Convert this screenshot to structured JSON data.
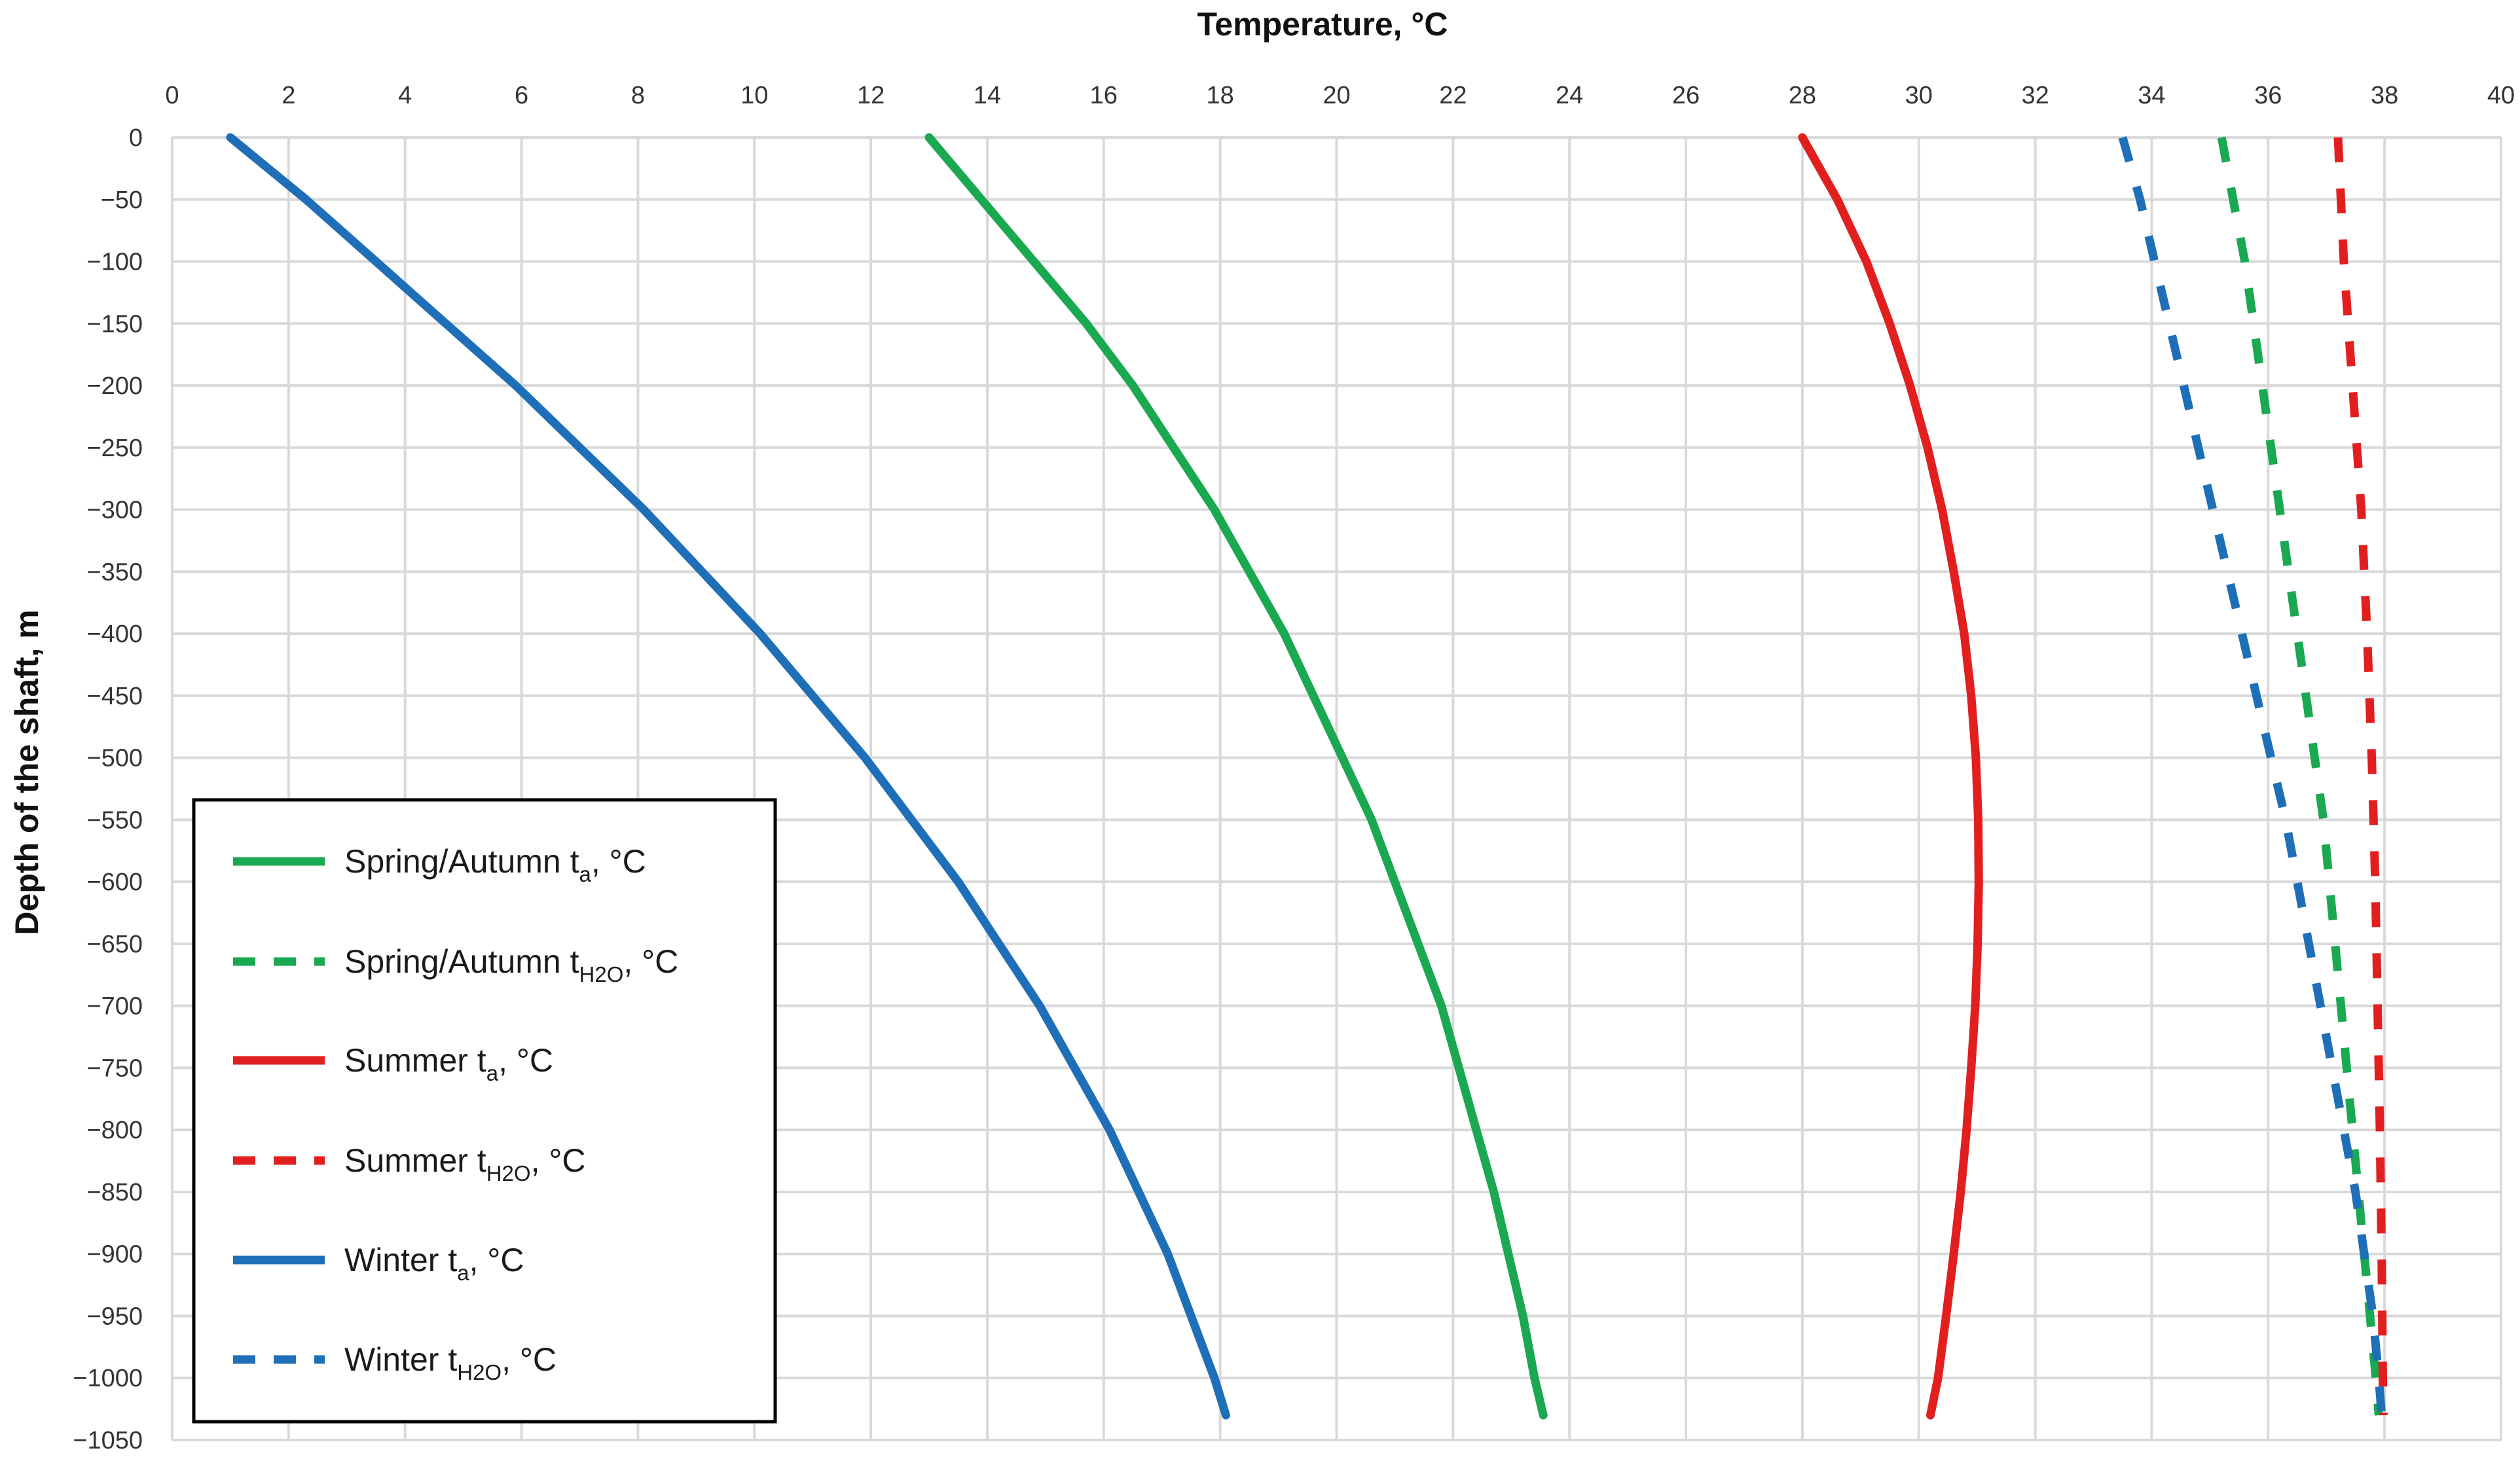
{
  "chart_data": {
    "type": "line",
    "title": "",
    "xlabel": "Temperature, °C",
    "ylabel": "Depth of the shaft, m",
    "xlim": [
      0,
      40
    ],
    "ylim": [
      -1050,
      0
    ],
    "x_ticks": [
      0,
      2,
      4,
      6,
      8,
      10,
      12,
      14,
      16,
      18,
      20,
      22,
      24,
      26,
      28,
      30,
      32,
      34,
      36,
      38,
      40
    ],
    "y_ticks": [
      0,
      -50,
      -100,
      -150,
      -200,
      -250,
      -300,
      -350,
      -400,
      -450,
      -500,
      -550,
      -600,
      -650,
      -700,
      -750,
      -800,
      -850,
      -900,
      -950,
      -1000,
      -1050
    ],
    "x_axis_position": "top",
    "grid": true,
    "legend_position": "bottom-left",
    "series": [
      {
        "name": "Spring/Autumn ta, °C",
        "legend_main": "Spring/Autumn t",
        "legend_sub": "a",
        "legend_tail": ", °C",
        "color": "#1aa850",
        "style": "solid",
        "points": [
          [
            13.0,
            0
          ],
          [
            13.9,
            -50
          ],
          [
            14.8,
            -100
          ],
          [
            15.7,
            -150
          ],
          [
            16.5,
            -200
          ],
          [
            17.2,
            -250
          ],
          [
            17.9,
            -300
          ],
          [
            18.5,
            -350
          ],
          [
            19.1,
            -400
          ],
          [
            19.6,
            -450
          ],
          [
            20.1,
            -500
          ],
          [
            20.6,
            -550
          ],
          [
            21.0,
            -600
          ],
          [
            21.4,
            -650
          ],
          [
            21.8,
            -700
          ],
          [
            22.1,
            -750
          ],
          [
            22.4,
            -800
          ],
          [
            22.7,
            -850
          ],
          [
            22.95,
            -900
          ],
          [
            23.2,
            -950
          ],
          [
            23.4,
            -1000
          ],
          [
            23.55,
            -1030
          ]
        ]
      },
      {
        "name": "Spring/Autumn tH2O, °C",
        "legend_main": "Spring/Autumn t",
        "legend_sub": "H2O",
        "legend_tail": ", °C",
        "color": "#1aa850",
        "style": "dashed",
        "points": [
          [
            35.2,
            0
          ],
          [
            35.4,
            -50
          ],
          [
            35.6,
            -100
          ],
          [
            35.75,
            -150
          ],
          [
            35.9,
            -200
          ],
          [
            36.05,
            -250
          ],
          [
            36.2,
            -300
          ],
          [
            36.35,
            -350
          ],
          [
            36.5,
            -400
          ],
          [
            36.65,
            -450
          ],
          [
            36.8,
            -500
          ],
          [
            36.95,
            -550
          ],
          [
            37.05,
            -600
          ],
          [
            37.15,
            -650
          ],
          [
            37.25,
            -700
          ],
          [
            37.35,
            -750
          ],
          [
            37.45,
            -800
          ],
          [
            37.55,
            -850
          ],
          [
            37.65,
            -900
          ],
          [
            37.75,
            -950
          ],
          [
            37.85,
            -1000
          ],
          [
            37.9,
            -1030
          ]
        ]
      },
      {
        "name": "Summer ta, °C",
        "legend_main": "Summer t",
        "legend_sub": "a",
        "legend_tail": ", °C",
        "color": "#e11f1f",
        "style": "solid",
        "points": [
          [
            28.0,
            0
          ],
          [
            28.6,
            -50
          ],
          [
            29.1,
            -100
          ],
          [
            29.5,
            -150
          ],
          [
            29.85,
            -200
          ],
          [
            30.15,
            -250
          ],
          [
            30.4,
            -300
          ],
          [
            30.6,
            -350
          ],
          [
            30.78,
            -400
          ],
          [
            30.9,
            -450
          ],
          [
            30.98,
            -500
          ],
          [
            31.02,
            -550
          ],
          [
            31.03,
            -600
          ],
          [
            31.01,
            -650
          ],
          [
            30.97,
            -700
          ],
          [
            30.9,
            -750
          ],
          [
            30.82,
            -800
          ],
          [
            30.72,
            -850
          ],
          [
            30.6,
            -900
          ],
          [
            30.47,
            -950
          ],
          [
            30.33,
            -1000
          ],
          [
            30.2,
            -1030
          ]
        ]
      },
      {
        "name": "Summer tH2O, °C",
        "legend_main": "Summer t",
        "legend_sub": "H2O",
        "legend_tail": ", °C",
        "color": "#e11f1f",
        "style": "dashed",
        "points": [
          [
            37.2,
            0
          ],
          [
            37.3,
            -100
          ],
          [
            37.45,
            -200
          ],
          [
            37.6,
            -300
          ],
          [
            37.7,
            -400
          ],
          [
            37.78,
            -500
          ],
          [
            37.84,
            -600
          ],
          [
            37.88,
            -700
          ],
          [
            37.92,
            -800
          ],
          [
            37.95,
            -900
          ],
          [
            37.97,
            -1000
          ],
          [
            37.98,
            -1030
          ]
        ]
      },
      {
        "name": "Winter ta, °C",
        "legend_main": "Winter t",
        "legend_sub": "a",
        "legend_tail": ", °C",
        "color": "#1f6fb8",
        "style": "solid",
        "points": [
          [
            1.0,
            0
          ],
          [
            2.3,
            -50
          ],
          [
            3.5,
            -100
          ],
          [
            4.7,
            -150
          ],
          [
            5.9,
            -200
          ],
          [
            7.0,
            -250
          ],
          [
            8.1,
            -300
          ],
          [
            9.1,
            -350
          ],
          [
            10.1,
            -400
          ],
          [
            11.0,
            -450
          ],
          [
            11.9,
            -500
          ],
          [
            12.7,
            -550
          ],
          [
            13.5,
            -600
          ],
          [
            14.2,
            -650
          ],
          [
            14.9,
            -700
          ],
          [
            15.5,
            -750
          ],
          [
            16.1,
            -800
          ],
          [
            16.6,
            -850
          ],
          [
            17.1,
            -900
          ],
          [
            17.5,
            -950
          ],
          [
            17.9,
            -1000
          ],
          [
            18.1,
            -1030
          ]
        ]
      },
      {
        "name": "Winter tH2O, °C",
        "legend_main": "Winter t",
        "legend_sub": "H2O",
        "legend_tail": ", °C",
        "color": "#1f6fb8",
        "style": "dashed",
        "points": [
          [
            33.5,
            0
          ],
          [
            33.8,
            -50
          ],
          [
            34.05,
            -100
          ],
          [
            34.3,
            -150
          ],
          [
            34.55,
            -200
          ],
          [
            34.8,
            -250
          ],
          [
            35.05,
            -300
          ],
          [
            35.3,
            -350
          ],
          [
            35.55,
            -400
          ],
          [
            35.8,
            -450
          ],
          [
            36.05,
            -500
          ],
          [
            36.3,
            -550
          ],
          [
            36.5,
            -600
          ],
          [
            36.7,
            -650
          ],
          [
            36.9,
            -700
          ],
          [
            37.1,
            -750
          ],
          [
            37.3,
            -800
          ],
          [
            37.5,
            -850
          ],
          [
            37.65,
            -900
          ],
          [
            37.8,
            -950
          ],
          [
            37.9,
            -1000
          ],
          [
            37.95,
            -1030
          ]
        ]
      }
    ]
  }
}
